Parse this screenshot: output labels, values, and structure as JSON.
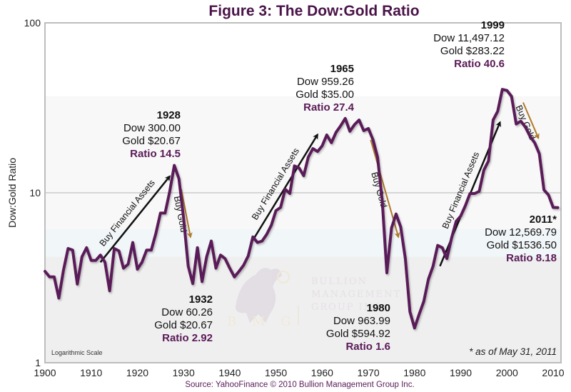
{
  "chart_data": {
    "type": "line",
    "title": "Figure 3: The Dow:Gold Ratio",
    "xlabel": "",
    "ylabel": "Dow:Gold Ratio",
    "yscale": "log",
    "ylim": [
      1,
      100
    ],
    "xlim": [
      1900,
      2011
    ],
    "x_ticks": [
      "1900",
      "1910",
      "1920",
      "1930",
      "1940",
      "1950",
      "1960",
      "1970",
      "1980",
      "1990",
      "2000",
      "2010"
    ],
    "y_ticks": [
      "1",
      "10",
      "100"
    ],
    "grid": "horizontal at 10",
    "scale_note": "Logarithmic Scale",
    "footnote": "* as of May 31, 2011",
    "source": "Source: YahooFinance © 2010 Bullion Management Group Inc.",
    "line_color": "#5a1a58",
    "series": [
      {
        "name": "Dow:Gold Ratio",
        "x": [
          1900,
          1901,
          1902,
          1903,
          1904,
          1905,
          1906,
          1907,
          1908,
          1909,
          1910,
          1911,
          1912,
          1913,
          1914,
          1915,
          1916,
          1917,
          1918,
          1919,
          1920,
          1921,
          1922,
          1923,
          1924,
          1925,
          1926,
          1927,
          1928,
          1929,
          1930,
          1931,
          1932,
          1933,
          1934,
          1935,
          1936,
          1937,
          1938,
          1939,
          1940,
          1941,
          1942,
          1943,
          1944,
          1945,
          1946,
          1947,
          1948,
          1949,
          1950,
          1951,
          1952,
          1953,
          1954,
          1955,
          1956,
          1957,
          1958,
          1959,
          1960,
          1961,
          1962,
          1963,
          1964,
          1965,
          1966,
          1967,
          1968,
          1969,
          1970,
          1971,
          1972,
          1973,
          1974,
          1975,
          1976,
          1977,
          1978,
          1979,
          1980,
          1981,
          1982,
          1983,
          1984,
          1985,
          1986,
          1987,
          1988,
          1989,
          1990,
          1991,
          1992,
          1993,
          1994,
          1995,
          1996,
          1997,
          1998,
          1999,
          2000,
          2001,
          2002,
          2003,
          2004,
          2005,
          2006,
          2007,
          2008,
          2009,
          2010,
          2011
        ],
        "values": [
          3.45,
          3.2,
          3.2,
          2.4,
          3.5,
          4.7,
          4.6,
          2.9,
          4.2,
          4.75,
          4.0,
          4.0,
          4.3,
          3.9,
          2.65,
          4.7,
          4.55,
          3.6,
          3.8,
          5.1,
          3.55,
          3.9,
          4.6,
          4.6,
          5.75,
          7.6,
          7.6,
          10.2,
          14.5,
          12.1,
          7.1,
          3.7,
          2.92,
          4.75,
          3.0,
          4.2,
          5.2,
          3.6,
          4.3,
          4.1,
          3.6,
          3.2,
          3.45,
          3.75,
          4.25,
          5.5,
          5.1,
          5.2,
          5.7,
          6.45,
          7.85,
          8.2,
          10.5,
          9.9,
          14.4,
          14.0,
          12.6,
          16.2,
          18.2,
          17.5,
          18.9,
          21.9,
          19.7,
          22.7,
          24.8,
          27.4,
          23.0,
          25.2,
          26.8,
          23.2,
          23.9,
          20.5,
          16.2,
          9.0,
          3.38,
          6.2,
          7.5,
          6.3,
          4.1,
          2.0,
          1.6,
          1.93,
          2.3,
          3.1,
          3.7,
          4.9,
          4.75,
          4.1,
          5.4,
          6.8,
          7.3,
          8.4,
          9.9,
          9.9,
          10.2,
          13.6,
          15.4,
          26.8,
          30.2,
          40.6,
          40.0,
          36.9,
          25.4,
          26.4,
          24.3,
          21.5,
          19.7,
          17.0,
          10.4,
          9.7,
          8.2,
          8.18
        ]
      }
    ],
    "annotations": [
      {
        "id": "1928",
        "year": "1928",
        "dow": "Dow 300.00",
        "gold": "Gold $20.67",
        "ratio": "Ratio 14.5",
        "anchor_year": 1928,
        "anchor_value": 14.5,
        "placement": "above-left"
      },
      {
        "id": "1932",
        "year": "1932",
        "dow": "Dow 60.26",
        "gold": "Gold $20.67",
        "ratio": "Ratio 2.92",
        "anchor_year": 1932,
        "anchor_value": 2.92,
        "placement": "below"
      },
      {
        "id": "1965",
        "year": "1965",
        "dow": "Dow 959.26",
        "gold": "Gold $35.00",
        "ratio": "Ratio 27.4",
        "anchor_year": 1965,
        "anchor_value": 27.4,
        "placement": "above-left"
      },
      {
        "id": "1980",
        "year": "1980",
        "dow": "Dow 963.99",
        "gold": "Gold $594.92",
        "ratio": "Ratio 1.6",
        "anchor_year": 1980,
        "anchor_value": 1.6,
        "placement": "below-left"
      },
      {
        "id": "1999",
        "year": "1999",
        "dow": "Dow 11,497.12",
        "gold": "Gold $283.22",
        "ratio": "Ratio 40.6",
        "anchor_year": 1999,
        "anchor_value": 40.6,
        "placement": "above-left"
      },
      {
        "id": "2011",
        "year": "2011*",
        "dow": "Dow 12,569.79",
        "gold": "Gold $1536.50",
        "ratio": "Ratio 8.18",
        "anchor_year": 2011,
        "anchor_value": 8.18,
        "placement": "below-left"
      }
    ],
    "trend_arrows": [
      {
        "label": "Buy Financial Assets",
        "kind": "buy-financial",
        "color": "#111111",
        "from": [
          1912,
          3.9
        ],
        "to": [
          1927,
          12.5
        ]
      },
      {
        "label": "Buy Gold",
        "kind": "buy-gold",
        "color": "#b07a2a",
        "from": [
          1929.5,
          10.5
        ],
        "to": [
          1931.5,
          5.5
        ]
      },
      {
        "label": "Buy Financial Assets",
        "kind": "buy-financial",
        "color": "#111111",
        "from": [
          1944.5,
          5.0
        ],
        "to": [
          1959,
          22.0
        ]
      },
      {
        "label": "Buy Gold",
        "kind": "buy-gold",
        "color": "#b07a2a",
        "from": [
          1970.5,
          20.5
        ],
        "to": [
          1976.5,
          5.5
        ]
      },
      {
        "label": "Buy Financial Assets",
        "kind": "buy-financial",
        "color": "#111111",
        "from": [
          1985.5,
          3.7
        ],
        "to": [
          1998.5,
          26.0
        ]
      },
      {
        "label": "Buy Gold",
        "kind": "buy-gold",
        "color": "#b07a2a",
        "from": [
          2003.5,
          34.0
        ],
        "to": [
          2006.8,
          21.0
        ]
      }
    ],
    "bands": [
      {
        "from": 100,
        "to": 37,
        "color": "#ffffff"
      },
      {
        "from": 37,
        "to": 6.1,
        "color": "#f8f8f8"
      },
      {
        "from": 6.1,
        "to": 4.2,
        "color": "#f1f6f8"
      },
      {
        "from": 4.2,
        "to": 1,
        "color": "#efefef"
      }
    ],
    "watermark": {
      "lines": [
        "BULLION",
        "MANAGEMENT",
        "GROUP INC."
      ],
      "initials": "B M G"
    }
  }
}
